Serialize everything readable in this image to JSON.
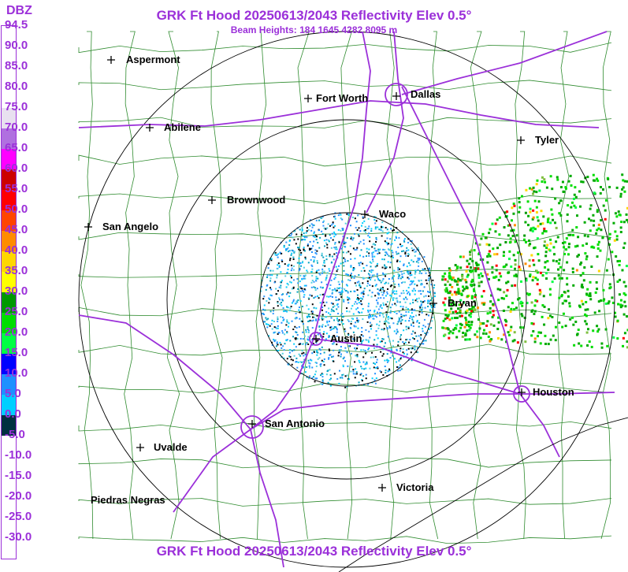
{
  "header": {
    "title": "GRK Ft Hood 20250613/2043 Reflectivity Elev 0.5°",
    "subtitle": "Beam Heights: 184 1645 4282 8095 m"
  },
  "footer": {
    "title": "GRK Ft Hood 20250613/2043 Reflectivity Elev 0.5°"
  },
  "legend": {
    "unit": "DBZ",
    "labels": [
      "94.5",
      "90.0",
      "85.0",
      "80.0",
      "75.0",
      "70.0",
      "65.0",
      "60.0",
      "55.0",
      "50.0",
      "45.0",
      "40.0",
      "35.0",
      "30.0",
      "25.0",
      "20.0",
      "15.0",
      "10.0",
      "5.0",
      "0.0",
      "-5.0",
      "-10.0",
      "-15.0",
      "-20.0",
      "-25.0",
      "-30.0"
    ],
    "colors": [
      "#ffffff",
      "#ffffff",
      "#ffffff",
      "#ffffff",
      "#e8e0f0",
      "#b070e0",
      "#ff00ff",
      "#cc0000",
      "#ff0000",
      "#ff4500",
      "#ff8c00",
      "#ffd700",
      "#ffff00",
      "#009900",
      "#00dd00",
      "#00ff44",
      "#0000ff",
      "#1e90ff",
      "#00cfff",
      "#003040",
      "#ffffff",
      "#ffffff",
      "#ffffff",
      "#ffffff",
      "#ffffff",
      "#ffffff"
    ]
  },
  "cities": [
    {
      "name": "Aspermont",
      "key": "aspermont"
    },
    {
      "name": "Fort Worth",
      "key": "fort-worth"
    },
    {
      "name": "Dallas",
      "key": "dallas"
    },
    {
      "name": "Abilene",
      "key": "abilene"
    },
    {
      "name": "Tyler",
      "key": "tyler"
    },
    {
      "name": "Brownwood",
      "key": "brownwood"
    },
    {
      "name": "Waco",
      "key": "waco"
    },
    {
      "name": "San Angelo",
      "key": "san-angelo"
    },
    {
      "name": "Bryan",
      "key": "bryan"
    },
    {
      "name": "Austin",
      "key": "austin"
    },
    {
      "name": "Houston",
      "key": "houston"
    },
    {
      "name": "San Antonio",
      "key": "san-antonio"
    },
    {
      "name": "Uvalde",
      "key": "uvalde"
    },
    {
      "name": "Victoria",
      "key": "victoria"
    },
    {
      "name": "Piedras Negras",
      "key": "piedras-negras"
    }
  ],
  "colors": {
    "title": "#9b30d9",
    "highways": "#9b30d9",
    "county_lines": "#2e8b2e",
    "range_rings": "#000000"
  }
}
